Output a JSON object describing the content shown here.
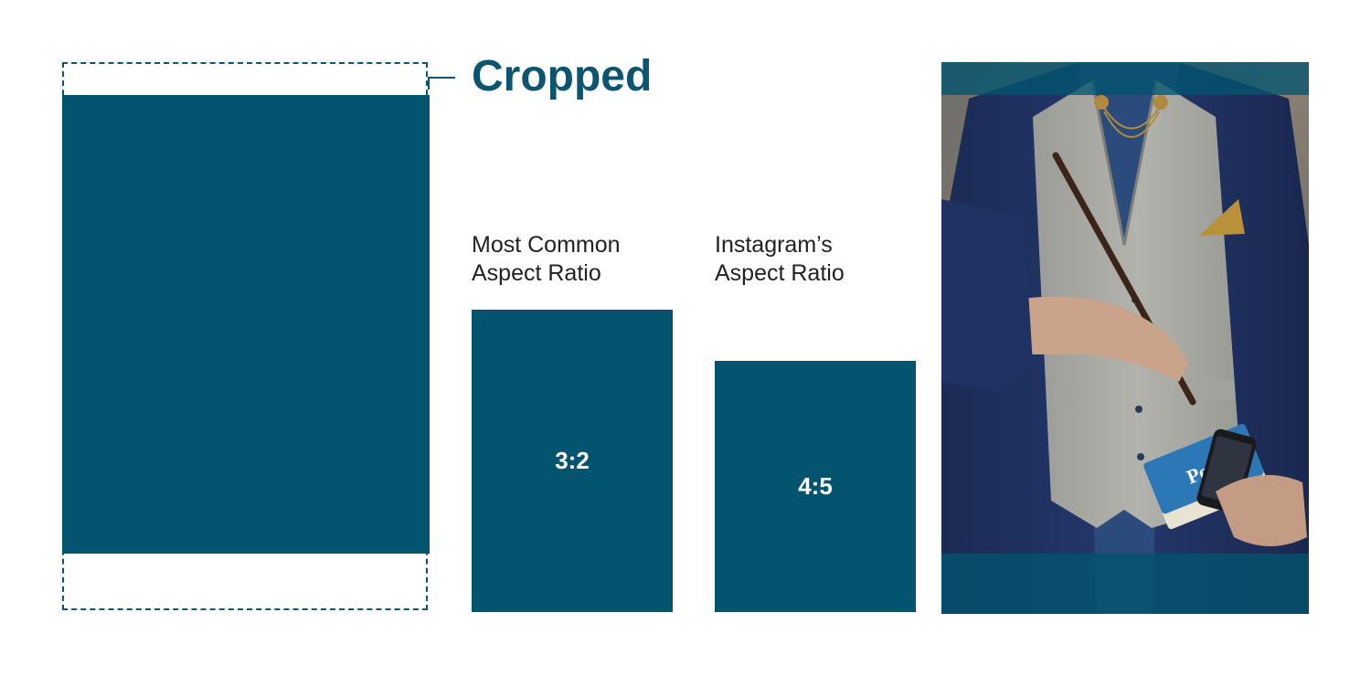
{
  "title": "Cropped",
  "labels": {
    "most_common": [
      "Most Common",
      "Aspect Ratio"
    ],
    "instagram": [
      "Instagram’s",
      "Aspect Ratio"
    ]
  },
  "ratios": {
    "common": "3:2",
    "instagram": "4:5"
  },
  "colors": {
    "accent": "#02546f",
    "title": "#0b5570",
    "text": "#222222",
    "overlay": "rgba(2,84,111,0.78)"
  },
  "photo": {
    "subject": "person in grey vest and navy cardigan holding wand, phone and book",
    "book_text": "Potter"
  }
}
